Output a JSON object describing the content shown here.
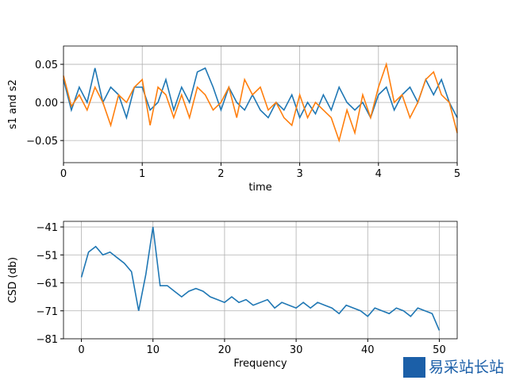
{
  "chart_data": [
    {
      "type": "line",
      "xlabel": "time",
      "ylabel": "s1 and s2",
      "grid": true,
      "xlim": [
        0,
        5
      ],
      "ylim": [
        -0.079,
        0.074
      ],
      "xticks": [
        0,
        1,
        2,
        3,
        4,
        5
      ],
      "yticks": [
        {
          "value": -0.05,
          "label": "−0.05"
        },
        {
          "value": 0,
          "label": "0.00"
        },
        {
          "value": 0.05,
          "label": "0.05"
        }
      ],
      "x": [
        0,
        0.1,
        0.2,
        0.3,
        0.4,
        0.5,
        0.6,
        0.7,
        0.8,
        0.9,
        1,
        1.1,
        1.2,
        1.3,
        1.4,
        1.5,
        1.6,
        1.7,
        1.8,
        1.9,
        2,
        2.1,
        2.2,
        2.3,
        2.4,
        2.5,
        2.6,
        2.7,
        2.8,
        2.9,
        3,
        3.1,
        3.2,
        3.3,
        3.4,
        3.5,
        3.6,
        3.7,
        3.8,
        3.9,
        4,
        4.1,
        4.2,
        4.3,
        4.4,
        4.5,
        4.6,
        4.7,
        4.8,
        4.9,
        5
      ],
      "series": [
        {
          "color": "#1f77b4",
          "values": [
            0.03,
            -0.01,
            0.02,
            0.0,
            0.045,
            0.0,
            0.02,
            0.01,
            -0.02,
            0.02,
            0.02,
            -0.01,
            0.0,
            0.03,
            -0.01,
            0.02,
            0.0,
            0.04,
            0.045,
            0.02,
            -0.01,
            0.02,
            0.0,
            -0.01,
            0.01,
            -0.01,
            -0.02,
            0.0,
            -0.01,
            0.01,
            -0.02,
            0.0,
            -0.015,
            0.01,
            -0.01,
            0.02,
            0.0,
            -0.01,
            0.0,
            -0.02,
            0.01,
            0.02,
            -0.01,
            0.01,
            0.02,
            0.0,
            0.03,
            0.01,
            0.03,
            0.0,
            -0.02
          ]
        },
        {
          "color": "#ff7f0e",
          "values": [
            0.035,
            -0.005,
            0.01,
            -0.01,
            0.02,
            0.0,
            -0.03,
            0.01,
            0.0,
            0.02,
            0.03,
            -0.03,
            0.02,
            0.01,
            -0.02,
            0.01,
            -0.02,
            0.02,
            0.01,
            -0.01,
            0.0,
            0.02,
            -0.02,
            0.03,
            0.01,
            0.02,
            -0.01,
            0.0,
            -0.02,
            -0.03,
            0.01,
            -0.02,
            0.0,
            -0.01,
            -0.02,
            -0.05,
            -0.01,
            -0.04,
            0.01,
            -0.02,
            0.02,
            0.05,
            0.0,
            0.01,
            -0.02,
            0.0,
            0.03,
            0.04,
            0.01,
            0.0,
            -0.04
          ]
        }
      ]
    },
    {
      "type": "line",
      "xlabel": "Frequency",
      "ylabel": "CSD (db)",
      "grid": true,
      "xlim": [
        -2.5,
        52.5
      ],
      "ylim": [
        -81,
        -39
      ],
      "xticks": [
        0,
        10,
        20,
        30,
        40,
        50
      ],
      "yticks": [
        {
          "value": -81,
          "label": "−81"
        },
        {
          "value": -71,
          "label": "−71"
        },
        {
          "value": -61,
          "label": "−61"
        },
        {
          "value": -51,
          "label": "−51"
        },
        {
          "value": -41,
          "label": "−41"
        }
      ],
      "x": [
        0,
        1,
        2,
        3,
        4,
        5,
        6,
        7,
        8,
        9,
        10,
        11,
        12,
        13,
        14,
        15,
        16,
        17,
        18,
        19,
        20,
        21,
        22,
        23,
        24,
        25,
        26,
        27,
        28,
        29,
        30,
        31,
        32,
        33,
        34,
        35,
        36,
        37,
        38,
        39,
        40,
        41,
        42,
        43,
        44,
        45,
        46,
        47,
        48,
        49,
        50
      ],
      "series": [
        {
          "color": "#1f77b4",
          "values": [
            -59,
            -50,
            -48,
            -51,
            -50,
            -52,
            -54,
            -57,
            -71,
            -58,
            -41,
            -62,
            -62,
            -64,
            -66,
            -64,
            -63,
            -64,
            -66,
            -67,
            -68,
            -66,
            -68,
            -67,
            -69,
            -68,
            -67,
            -70,
            -68,
            -69,
            -70,
            -68,
            -70,
            -68,
            -69,
            -70,
            -72,
            -69,
            -70,
            -71,
            -73,
            -70,
            -71,
            -72,
            -70,
            -71,
            -73,
            -70,
            -71,
            -72,
            -78
          ]
        }
      ]
    }
  ],
  "watermark": "易采站长站"
}
